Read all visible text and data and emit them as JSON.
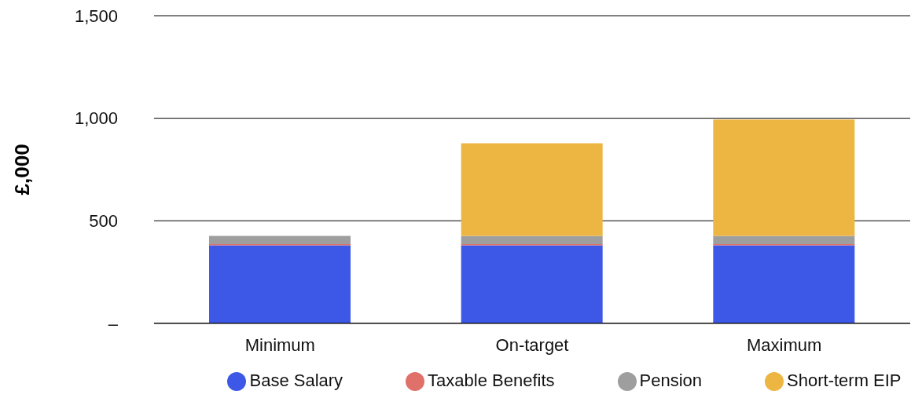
{
  "chart_data": {
    "type": "bar",
    "stacked": true,
    "ylabel": "£,000",
    "categories": [
      "Minimum",
      "On-target",
      "Maximum"
    ],
    "series": [
      {
        "name": "Base Salary",
        "color": "#3d58e6",
        "values": [
          380,
          380,
          380
        ]
      },
      {
        "name": "Taxable Benefits",
        "color": "#e0706a",
        "values": [
          6,
          6,
          6
        ]
      },
      {
        "name": "Pension",
        "color": "#9e9e9e",
        "values": [
          40,
          40,
          40
        ]
      },
      {
        "name": "Short-term EIP",
        "color": "#edb643",
        "values": [
          0,
          452,
          568
        ]
      }
    ],
    "ylim": [
      0,
      1500
    ],
    "yticks": [
      {
        "value": 0,
        "label": "–"
      },
      500,
      {
        "value": 1000,
        "label": "1,000"
      },
      {
        "value": 1500,
        "label": "1,500"
      }
    ],
    "grid": "y",
    "legend": "bottom"
  }
}
